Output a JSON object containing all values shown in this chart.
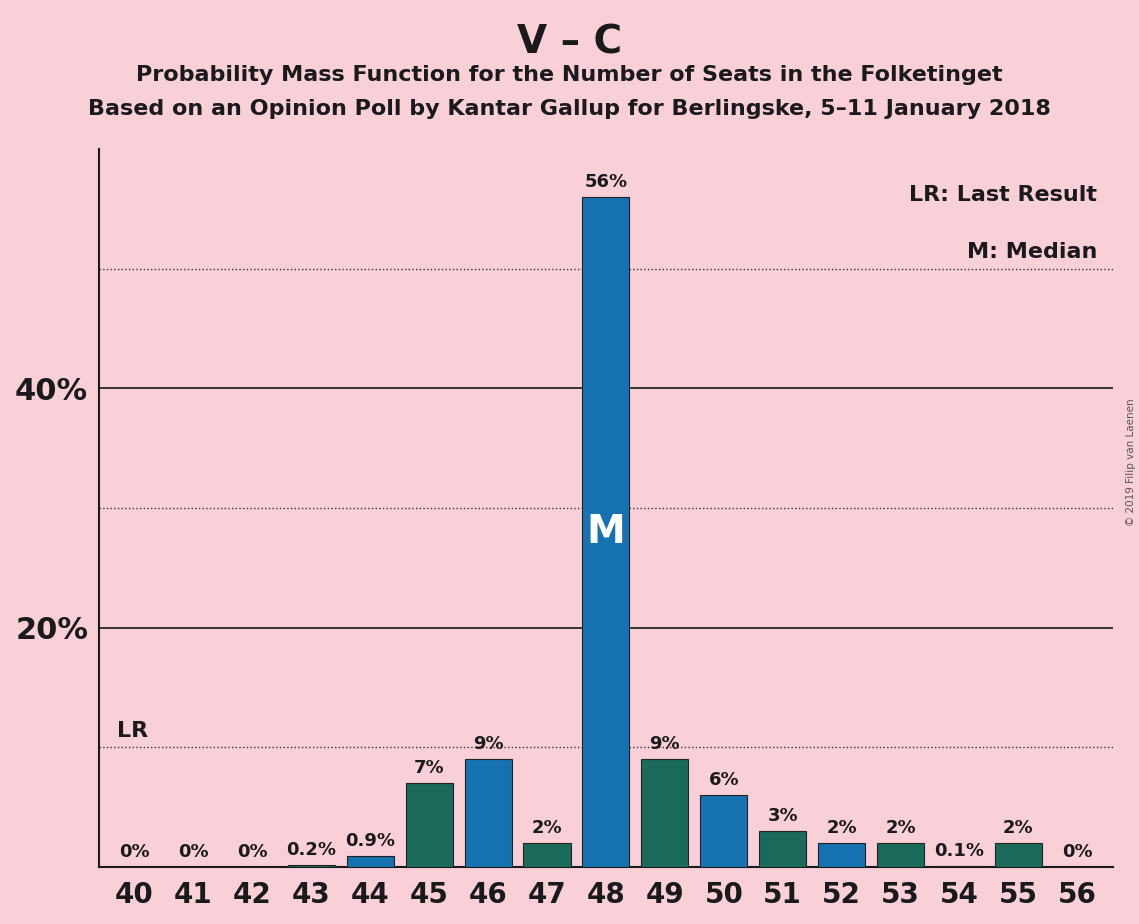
{
  "title_main": "V – C",
  "title_sub1": "Probability Mass Function for the Number of Seats in the Folketinget",
  "title_sub2": "Based on an Opinion Poll by Kantar Gallup for Berlingske, 5–11 January 2018",
  "copyright": "© 2019 Filip van Laenen",
  "categories": [
    40,
    41,
    42,
    43,
    44,
    45,
    46,
    47,
    48,
    49,
    50,
    51,
    52,
    53,
    54,
    55,
    56
  ],
  "values": [
    0.0,
    0.0,
    0.0,
    0.2,
    0.9,
    7.0,
    9.0,
    2.0,
    56.0,
    9.0,
    6.0,
    3.0,
    2.0,
    2.0,
    0.1,
    2.0,
    0.0
  ],
  "blue_color": "#1672b0",
  "teal_color": "#1a6b5a",
  "median_bar": 48,
  "median_label": "M",
  "lr_label_val": "LR",
  "ylim": [
    0,
    60
  ],
  "solid_lines": [
    20,
    40
  ],
  "dotted_lines": [
    10,
    30,
    50
  ],
  "background_color": "#f9d0d8",
  "bar_edge_color": "#222222",
  "legend_lr": "LR: Last Result",
  "legend_m": "M: Median",
  "label_fontsize": 13,
  "title_fontsize": 28,
  "subtitle_fontsize": 16,
  "ytick_labels_positions": [
    20,
    40
  ],
  "ytick_labels_text": [
    "20%",
    "40%"
  ]
}
